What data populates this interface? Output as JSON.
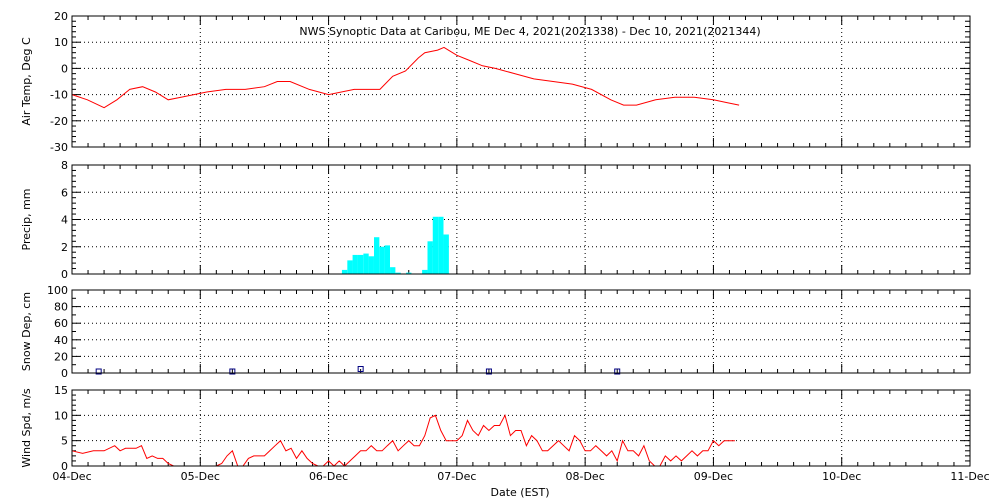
{
  "title": "NWS Synoptic Data at Caribou, ME   Dec  4, 2021(2021338) - Dec 10, 2021(2021344)",
  "xlabel": "Date (EST)",
  "x_ticks": [
    "04-Dec",
    "05-Dec",
    "06-Dec",
    "07-Dec",
    "08-Dec",
    "09-Dec",
    "10-Dec",
    "11-Dec"
  ],
  "colors": {
    "temp": "#ff0000",
    "precip": "#00ffff",
    "snow": "#000080",
    "wind": "#ff0000",
    "axis": "#000000"
  },
  "chart_data": [
    {
      "type": "line",
      "ylabel": "Air Temp, Deg C",
      "ylim": [
        -30,
        20
      ],
      "y_ticks": [
        -30,
        -20,
        -10,
        0,
        10,
        20
      ],
      "x_unit": "days since 04-Dec 00:00 EST",
      "grid": true,
      "series": [
        {
          "x": [
            0,
            0.12,
            0.25,
            0.35,
            0.45,
            0.55,
            0.65,
            0.75,
            0.85,
            0.95,
            1.05,
            1.2,
            1.35,
            1.5,
            1.6,
            1.7,
            1.85,
            2.0,
            2.1,
            2.2,
            2.3,
            2.4,
            2.5,
            2.6,
            2.7,
            2.75,
            2.85,
            2.9,
            3.0,
            3.1,
            3.2,
            3.3,
            3.45,
            3.6,
            3.75,
            3.9,
            4.05,
            4.2,
            4.3,
            4.4,
            4.55,
            4.7,
            4.85,
            5.0,
            5.1,
            5.2
          ],
          "y": [
            -10,
            -12,
            -15,
            -12,
            -8,
            -7,
            -9,
            -12,
            -11,
            -10,
            -9,
            -8,
            -8,
            -7,
            -5,
            -5,
            -8,
            -10,
            -9,
            -8,
            -8,
            -8,
            -3,
            -1,
            4,
            6,
            7,
            8,
            5,
            3,
            1,
            0,
            -2,
            -4,
            -5,
            -6,
            -8,
            -12,
            -14,
            -14,
            -12,
            -11,
            -11,
            -12,
            -13,
            -14
          ]
        }
      ]
    },
    {
      "type": "bar",
      "ylabel": "Precip, mm",
      "ylim": [
        0,
        8
      ],
      "y_ticks": [
        0,
        2,
        4,
        6,
        8
      ],
      "x_unit": "days since 04-Dec 00:00 EST",
      "bar_width_days": 0.04167,
      "grid": true,
      "bars": {
        "x": [
          2.125,
          2.167,
          2.208,
          2.25,
          2.292,
          2.333,
          2.375,
          2.417,
          2.458,
          2.5,
          2.542,
          2.625,
          2.75,
          2.792,
          2.833,
          2.875,
          2.917
        ],
        "y": [
          0.3,
          1.0,
          1.4,
          1.4,
          1.5,
          1.3,
          2.7,
          2.0,
          2.1,
          0.5,
          0.1,
          0.1,
          0.3,
          2.4,
          4.2,
          4.2,
          2.9
        ]
      }
    },
    {
      "type": "scatter",
      "ylabel": "Snow Dep, cm",
      "ylim": [
        0,
        100
      ],
      "y_ticks": [
        0,
        20,
        40,
        60,
        80,
        100
      ],
      "y_minor_step": 10,
      "x_unit": "days since 04-Dec 00:00 EST",
      "grid": true,
      "points": {
        "x": [
          0.208,
          1.25,
          2.25,
          3.25,
          4.25
        ],
        "y": [
          0,
          0,
          3,
          0,
          0
        ]
      }
    },
    {
      "type": "line",
      "ylabel": "Wind Spd, m/s",
      "ylim": [
        0,
        15
      ],
      "y_ticks": [
        0,
        5,
        10,
        15
      ],
      "x_unit": "days since 04-Dec 00:00 EST",
      "grid": true,
      "series": [
        {
          "x": [
            0,
            0.083,
            0.167,
            0.25,
            0.333,
            0.375,
            0.417,
            0.458,
            0.5,
            0.542,
            0.583,
            0.625,
            0.667,
            0.708,
            0.75,
            0.792,
            0.833,
            0.875,
            0.917,
            0.958,
            1.0,
            1.042,
            1.083,
            1.125,
            1.167,
            1.208,
            1.25,
            1.292,
            1.333,
            1.375,
            1.417,
            1.458,
            1.5,
            1.542,
            1.583,
            1.625,
            1.667,
            1.708,
            1.75,
            1.792,
            1.833,
            1.875,
            1.917,
            1.958,
            2.0,
            2.042,
            2.083,
            2.125,
            2.167,
            2.208,
            2.25,
            2.292,
            2.333,
            2.375,
            2.417,
            2.458,
            2.5,
            2.542,
            2.583,
            2.625,
            2.667,
            2.708,
            2.75,
            2.792,
            2.833,
            2.875,
            2.917,
            2.958,
            3.0,
            3.042,
            3.083,
            3.125,
            3.167,
            3.208,
            3.25,
            3.292,
            3.333,
            3.375,
            3.417,
            3.458,
            3.5,
            3.542,
            3.583,
            3.625,
            3.667,
            3.708,
            3.75,
            3.792,
            3.833,
            3.875,
            3.917,
            3.958,
            4.0,
            4.042,
            4.083,
            4.125,
            4.167,
            4.208,
            4.25,
            4.292,
            4.333,
            4.375,
            4.417,
            4.458,
            4.5,
            4.542,
            4.583,
            4.625,
            4.667,
            4.708,
            4.75,
            4.792,
            4.833,
            4.875,
            4.917,
            4.958,
            5.0,
            5.042,
            5.083,
            5.125,
            5.167
          ],
          "y": [
            3,
            2.5,
            3,
            3,
            4,
            3,
            3.5,
            3.5,
            3.5,
            4,
            1.5,
            2,
            1.5,
            1.5,
            0.5,
            0,
            0,
            0,
            0,
            0,
            0,
            0,
            0,
            0,
            0.5,
            2,
            3,
            0,
            0,
            1.5,
            2,
            2,
            2,
            3,
            4,
            5,
            3,
            3.5,
            1.5,
            3,
            1.5,
            0.5,
            0,
            0,
            1,
            0,
            1,
            0,
            1,
            2,
            3,
            3,
            4,
            3,
            3,
            4,
            5,
            3,
            4,
            5,
            4,
            4,
            6,
            9.5,
            10,
            7,
            5,
            5,
            5,
            6,
            9,
            7,
            6,
            8,
            7,
            8,
            8,
            10,
            6,
            7,
            7,
            4,
            6,
            5,
            3,
            3,
            4,
            5,
            4,
            3,
            6,
            5,
            3,
            3,
            4,
            3,
            2,
            3,
            1,
            5,
            3,
            3,
            2,
            4,
            1,
            0,
            0,
            2,
            1,
            2,
            1,
            2,
            3,
            2,
            3,
            3,
            5,
            4,
            5,
            5,
            5
          ]
        }
      ]
    }
  ]
}
